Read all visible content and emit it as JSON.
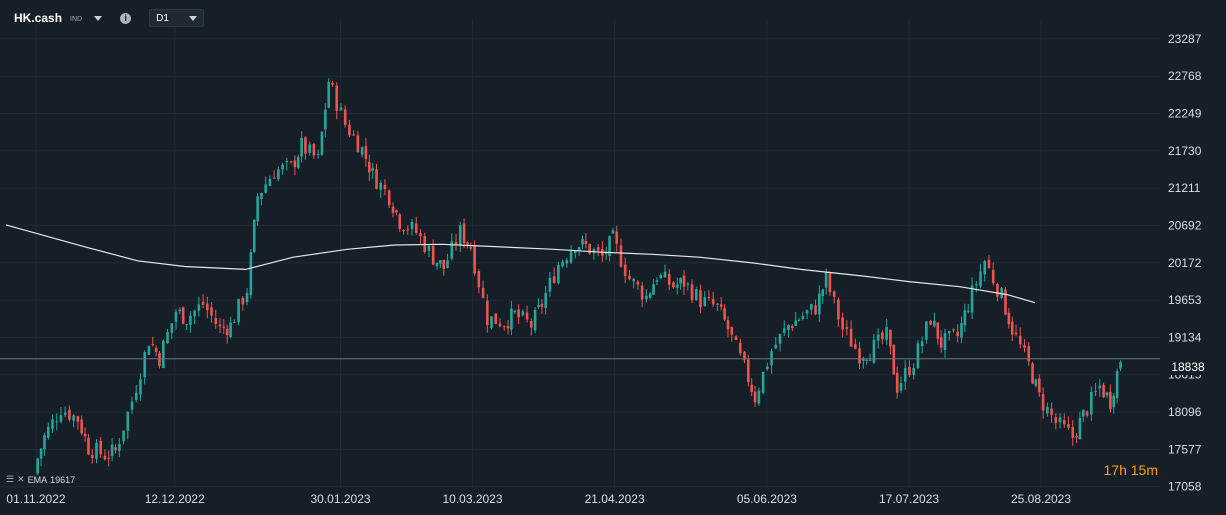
{
  "header": {
    "symbol": "HK.cash",
    "symbol_tag": "IND",
    "info_icon": "info-icon",
    "timeframe": "D1"
  },
  "indicator": {
    "name": "EMA",
    "value": "19617"
  },
  "timer": {
    "hours": "17",
    "hours_unit": "h",
    "minutes": "15",
    "minutes_unit": "m"
  },
  "last_price_label": "18838",
  "colors": {
    "up": "#26a69a",
    "down": "#ef5350",
    "ema": "#e6e6e6",
    "background": "#161f27"
  },
  "chart_data": {
    "type": "candlestick",
    "x_tick_labels": [
      "01.11.2022",
      "12.12.2022",
      "30.01.2023",
      "10.03.2023",
      "21.04.2023",
      "05.06.2023",
      "17.07.2023",
      "25.08.2023"
    ],
    "y_tick_labels": [
      "23287",
      "22768",
      "22249",
      "21730",
      "21211",
      "20692",
      "20172",
      "19653",
      "19134",
      "18615",
      "18096",
      "17577",
      "17058"
    ],
    "ylim": [
      16900,
      23550
    ],
    "last_price": 18838,
    "ema_period_label": "EMA",
    "ema": [
      {
        "date": "2022-11-01",
        "v": 20700
      },
      {
        "date": "2022-11-15",
        "v": 20400
      },
      {
        "date": "2022-12-01",
        "v": 20200
      },
      {
        "date": "2022-12-15",
        "v": 20120
      },
      {
        "date": "2023-01-02",
        "v": 20080
      },
      {
        "date": "2023-01-16",
        "v": 20250
      },
      {
        "date": "2023-02-01",
        "v": 20360
      },
      {
        "date": "2023-02-15",
        "v": 20420
      },
      {
        "date": "2023-03-01",
        "v": 20430
      },
      {
        "date": "2023-03-15",
        "v": 20400
      },
      {
        "date": "2023-04-03",
        "v": 20360
      },
      {
        "date": "2023-04-17",
        "v": 20320
      },
      {
        "date": "2023-05-02",
        "v": 20290
      },
      {
        "date": "2023-05-16",
        "v": 20250
      },
      {
        "date": "2023-06-01",
        "v": 20170
      },
      {
        "date": "2023-06-15",
        "v": 20080
      },
      {
        "date": "2023-07-03",
        "v": 19990
      },
      {
        "date": "2023-07-17",
        "v": 19910
      },
      {
        "date": "2023-08-01",
        "v": 19840
      },
      {
        "date": "2023-08-15",
        "v": 19730
      },
      {
        "date": "2023-08-31",
        "v": 19617
      }
    ],
    "closes": [
      {
        "date": "2022-11-01",
        "c": 17300
      },
      {
        "date": "2022-11-04",
        "c": 17750
      },
      {
        "date": "2022-11-09",
        "c": 18150
      },
      {
        "date": "2022-11-14",
        "c": 18000
      },
      {
        "date": "2022-11-17",
        "c": 17600
      },
      {
        "date": "2022-11-22",
        "c": 17500
      },
      {
        "date": "2022-11-25",
        "c": 17550
      },
      {
        "date": "2022-11-30",
        "c": 18250
      },
      {
        "date": "2022-12-05",
        "c": 19100
      },
      {
        "date": "2022-12-08",
        "c": 18850
      },
      {
        "date": "2022-12-13",
        "c": 19500
      },
      {
        "date": "2022-12-16",
        "c": 19400
      },
      {
        "date": "2022-12-21",
        "c": 19600
      },
      {
        "date": "2022-12-26",
        "c": 19250
      },
      {
        "date": "2022-12-29",
        "c": 19300
      },
      {
        "date": "2023-01-03",
        "c": 19800
      },
      {
        "date": "2023-01-06",
        "c": 21100
      },
      {
        "date": "2023-01-11",
        "c": 21450
      },
      {
        "date": "2023-01-16",
        "c": 21500
      },
      {
        "date": "2023-01-19",
        "c": 21800
      },
      {
        "date": "2023-01-24",
        "c": 21600
      },
      {
        "date": "2023-01-27",
        "c": 22700
      },
      {
        "date": "2023-02-01",
        "c": 22100
      },
      {
        "date": "2023-02-06",
        "c": 21750
      },
      {
        "date": "2023-02-09",
        "c": 21400
      },
      {
        "date": "2023-02-14",
        "c": 21100
      },
      {
        "date": "2023-02-17",
        "c": 20750
      },
      {
        "date": "2023-02-22",
        "c": 20600
      },
      {
        "date": "2023-02-27",
        "c": 20250
      },
      {
        "date": "2023-03-02",
        "c": 20100
      },
      {
        "date": "2023-03-07",
        "c": 20600
      },
      {
        "date": "2023-03-10",
        "c": 20400
      },
      {
        "date": "2023-03-15",
        "c": 19400
      },
      {
        "date": "2023-03-20",
        "c": 19350
      },
      {
        "date": "2023-03-23",
        "c": 19450
      },
      {
        "date": "2023-03-28",
        "c": 19300
      },
      {
        "date": "2023-03-31",
        "c": 19600
      },
      {
        "date": "2023-04-05",
        "c": 20150
      },
      {
        "date": "2023-04-10",
        "c": 20450
      },
      {
        "date": "2023-04-13",
        "c": 20400
      },
      {
        "date": "2023-04-18",
        "c": 20250
      },
      {
        "date": "2023-04-21",
        "c": 20500
      },
      {
        "date": "2023-04-26",
        "c": 19950
      },
      {
        "date": "2023-05-01",
        "c": 19700
      },
      {
        "date": "2023-05-04",
        "c": 20000
      },
      {
        "date": "2023-05-09",
        "c": 19850
      },
      {
        "date": "2023-05-12",
        "c": 19900
      },
      {
        "date": "2023-05-17",
        "c": 19650
      },
      {
        "date": "2023-05-22",
        "c": 19550
      },
      {
        "date": "2023-05-25",
        "c": 19250
      },
      {
        "date": "2023-05-30",
        "c": 18700
      },
      {
        "date": "2023-06-02",
        "c": 18300
      },
      {
        "date": "2023-06-07",
        "c": 18950
      },
      {
        "date": "2023-06-12",
        "c": 19300
      },
      {
        "date": "2023-06-15",
        "c": 19400
      },
      {
        "date": "2023-06-20",
        "c": 19550
      },
      {
        "date": "2023-06-23",
        "c": 19950
      },
      {
        "date": "2023-06-28",
        "c": 19250
      },
      {
        "date": "2023-07-03",
        "c": 18900
      },
      {
        "date": "2023-07-06",
        "c": 18950
      },
      {
        "date": "2023-07-11",
        "c": 19150
      },
      {
        "date": "2023-07-14",
        "c": 18450
      },
      {
        "date": "2023-07-19",
        "c": 18800
      },
      {
        "date": "2023-07-24",
        "c": 19400
      },
      {
        "date": "2023-07-27",
        "c": 19050
      },
      {
        "date": "2023-08-01",
        "c": 19150
      },
      {
        "date": "2023-08-04",
        "c": 19600
      },
      {
        "date": "2023-08-09",
        "c": 20200
      },
      {
        "date": "2023-08-14",
        "c": 19700
      },
      {
        "date": "2023-08-17",
        "c": 19250
      },
      {
        "date": "2023-08-22",
        "c": 18750
      },
      {
        "date": "2023-08-25",
        "c": 18300
      },
      {
        "date": "2023-08-30",
        "c": 17950
      },
      {
        "date": "2023-09-04",
        "c": 17750
      },
      {
        "date": "2023-09-07",
        "c": 18050
      },
      {
        "date": "2023-09-12",
        "c": 18450
      },
      {
        "date": "2023-09-15",
        "c": 18250
      },
      {
        "date": "2023-09-18",
        "c": 18838
      }
    ]
  }
}
